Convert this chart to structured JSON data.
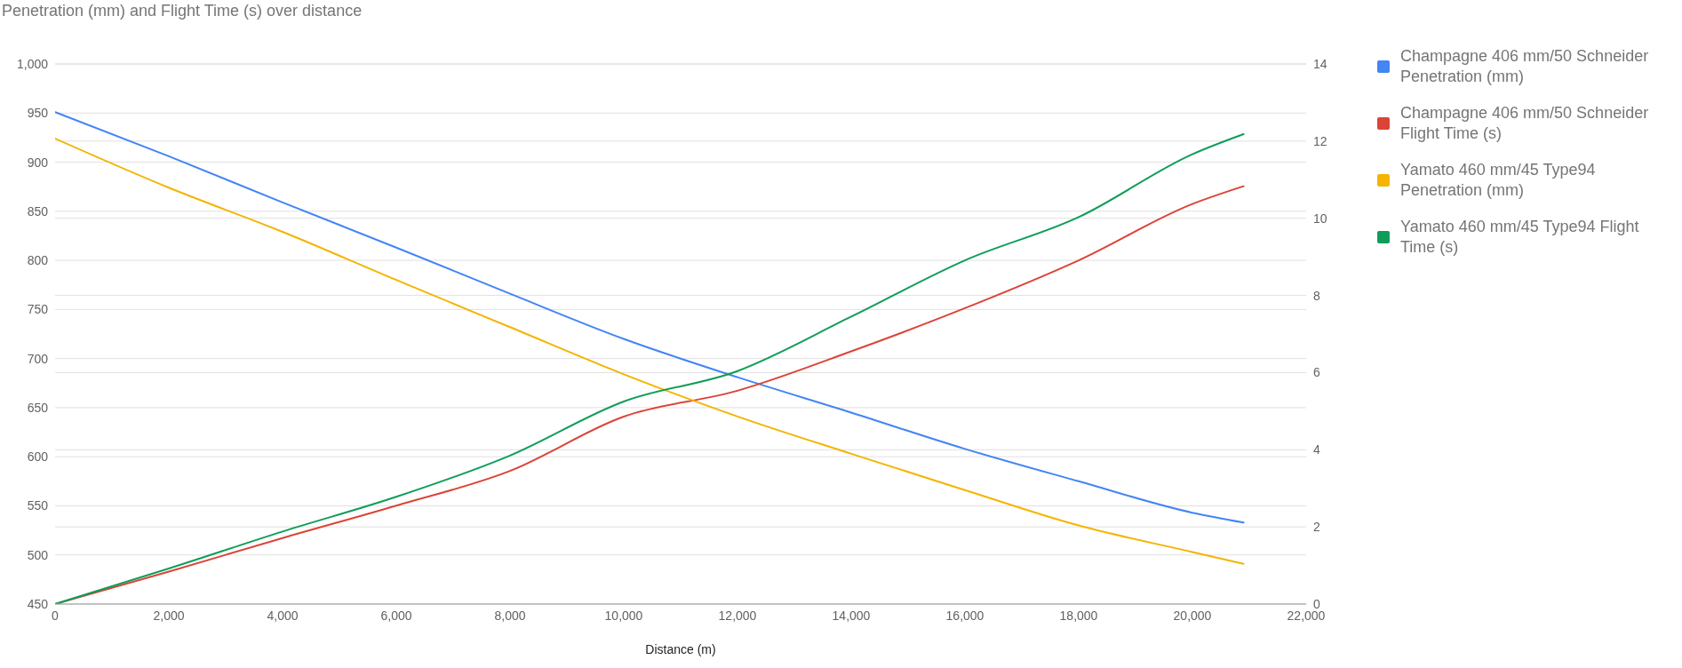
{
  "chart_data": {
    "type": "line",
    "title": "Penetration (mm) and Flight Time (s) over distance",
    "xlabel": "Distance (m)",
    "x": [
      0,
      2000,
      4000,
      6000,
      8000,
      10000,
      12000,
      14000,
      16000,
      18000,
      20000,
      20900
    ],
    "series": [
      {
        "name": "Champagne 406 mm/50 Schneider Penetration (mm)",
        "color": "#4285f4",
        "values": [
          951,
          906,
          859,
          813,
          766,
          720,
          681,
          645,
          608,
          575,
          543,
          533
        ]
      },
      {
        "name": "Champagne 406 mm/50 Schneider Flight Time (s)",
        "color": "#db4437",
        "axis": "y2",
        "values": [
          0,
          0.84,
          1.71,
          2.55,
          3.45,
          4.86,
          5.53,
          6.55,
          7.67,
          8.91,
          10.37,
          10.83
        ]
      },
      {
        "name": "Yamato 460 mm/45 Type94 Penetration (mm)",
        "color": "#f4b400",
        "values": [
          924,
          874,
          829,
          780,
          732,
          684,
          641,
          603,
          566,
          530,
          503,
          491
        ]
      },
      {
        "name": "Yamato 460 mm/45 Type94 Flight Time (s)",
        "color": "#0f9d58",
        "axis": "y2",
        "values": [
          0,
          0.92,
          1.88,
          2.78,
          3.85,
          5.25,
          6.04,
          7.45,
          8.91,
          10.03,
          11.66,
          12.18
        ]
      }
    ],
    "xlim": [
      0,
      22000
    ],
    "xticks": [
      0,
      {
        "value": 2000,
        "label": "2,000"
      },
      {
        "value": 4000,
        "label": "4,000"
      },
      {
        "value": 6000,
        "label": "6,000"
      },
      {
        "value": 8000,
        "label": "8,000"
      },
      {
        "value": 10000,
        "label": "10,000"
      },
      {
        "value": 12000,
        "label": "12,000"
      },
      {
        "value": 14000,
        "label": "14,000"
      },
      {
        "value": 16000,
        "label": "16,000"
      },
      {
        "value": 18000,
        "label": "18,000"
      },
      {
        "value": 20000,
        "label": "20,000"
      },
      {
        "value": 22000,
        "label": "22,000"
      }
    ],
    "ylim": [
      450,
      1000
    ],
    "yticks": [
      450,
      500,
      550,
      600,
      650,
      700,
      750,
      800,
      850,
      900,
      950,
      {
        "value": 1000,
        "label": "1,000"
      }
    ],
    "y2lim": [
      0,
      14
    ],
    "y2ticks": [
      0,
      2,
      4,
      6,
      8,
      10,
      12,
      14
    ],
    "grid": "y",
    "legend": "right",
    "marker": "none",
    "line_style": "solid"
  }
}
